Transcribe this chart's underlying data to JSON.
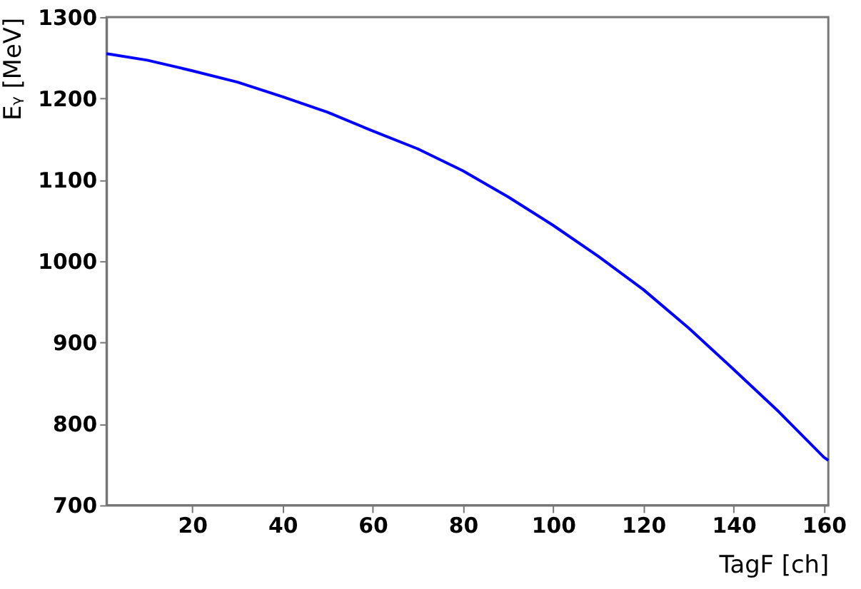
{
  "chart_data": {
    "type": "line",
    "xlabel": "TagF [ch]",
    "ylabel": "Eᵧ [MeV]",
    "x": [
      1,
      10,
      20,
      30,
      40,
      50,
      60,
      70,
      80,
      90,
      100,
      110,
      120,
      130,
      140,
      150,
      160,
      161
    ],
    "series": [
      {
        "color": "#0000ff",
        "values": [
          1255,
          1247,
          1234,
          1220,
          1202,
          1183,
          1160,
          1138,
          1111,
          1079,
          1044,
          1006,
          965,
          918,
          867,
          815,
          759,
          755
        ]
      }
    ],
    "xlim": [
      1,
      161
    ],
    "xticks": [
      20,
      40,
      60,
      80,
      100,
      120,
      140,
      160
    ],
    "ylim": [
      700,
      1300
    ],
    "yticks": [
      700,
      800,
      900,
      1000,
      1100,
      1200,
      1300
    ],
    "grid": false,
    "marker": "none",
    "line_style": "solid"
  }
}
